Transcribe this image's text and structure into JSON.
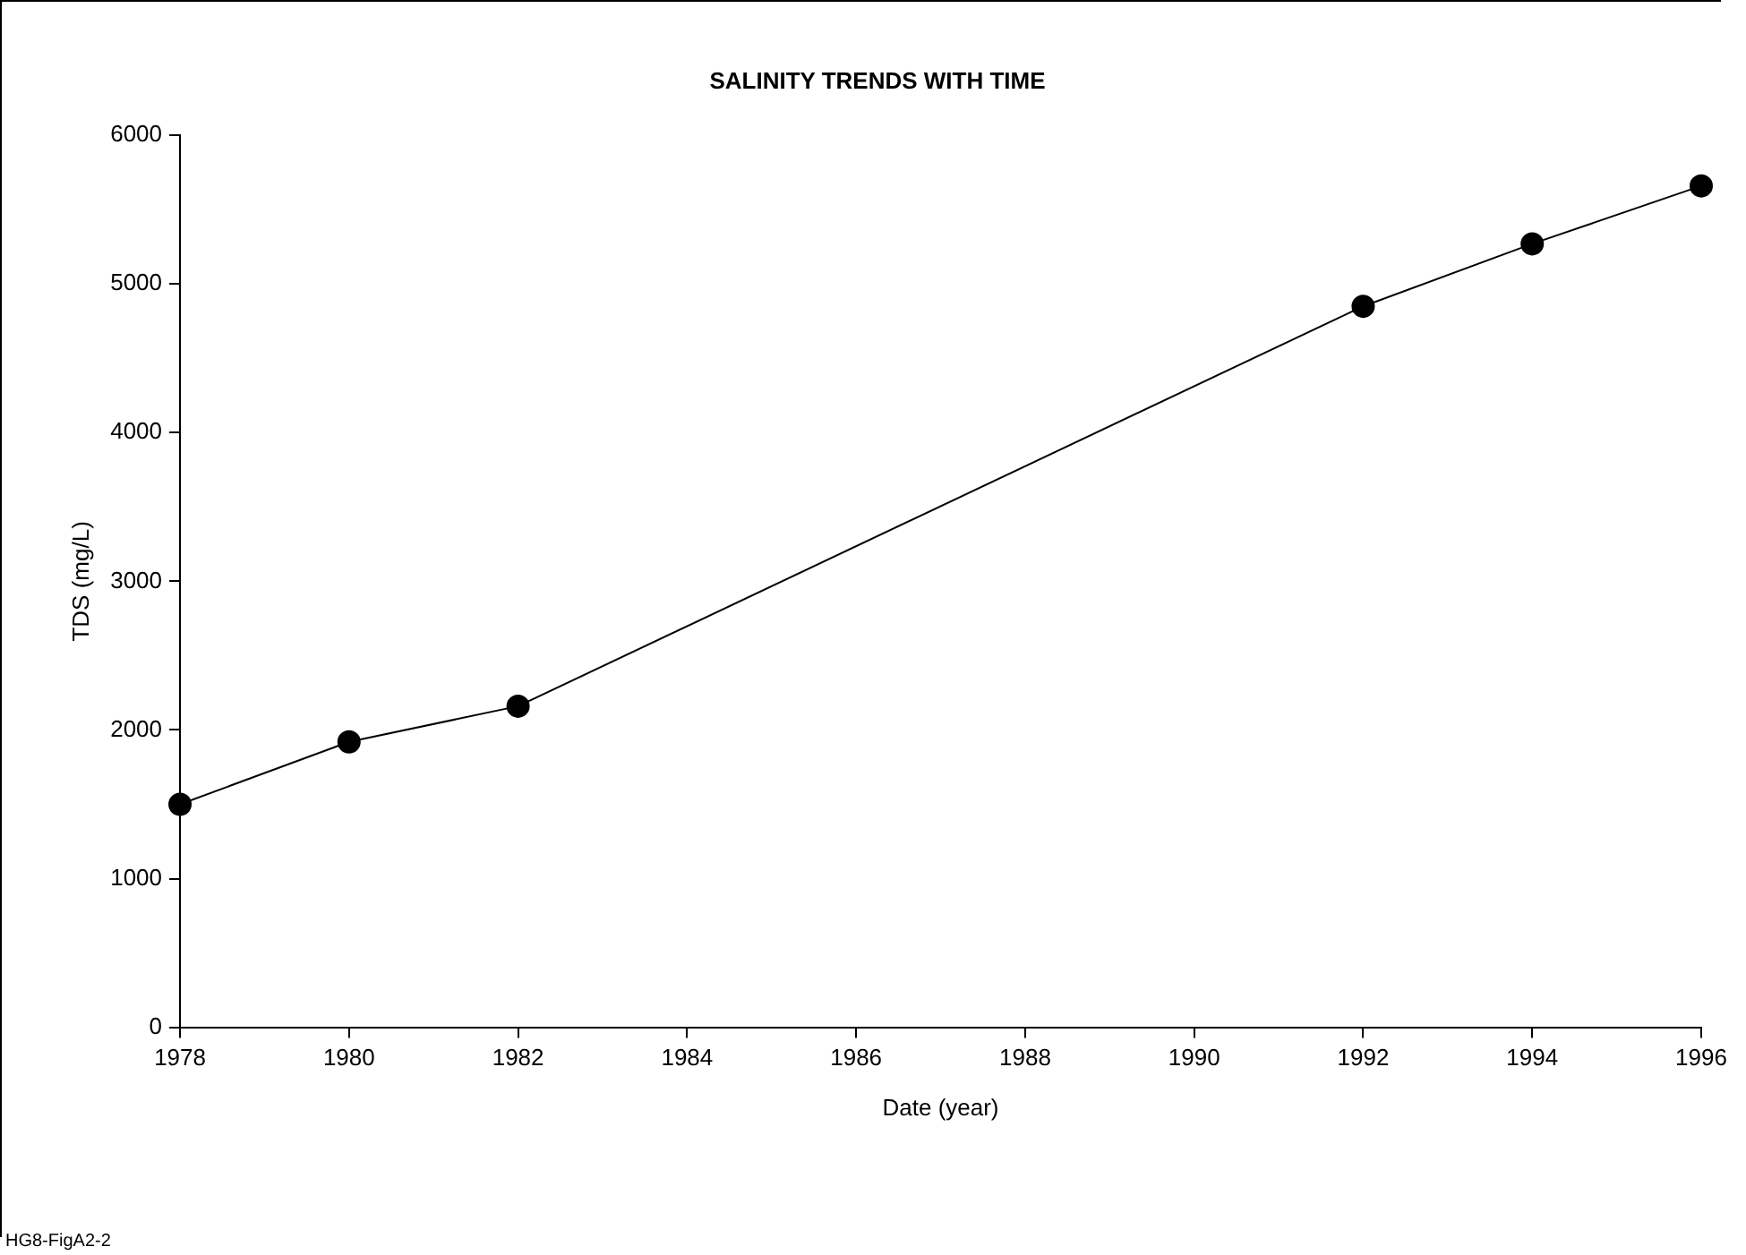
{
  "chart_data": {
    "type": "line",
    "title": "SALINITY TRENDS WITH TIME",
    "xlabel": "Date (year)",
    "ylabel": "TDS (mg/L)",
    "x": [
      1978,
      1980,
      1982,
      1992,
      1994,
      1996
    ],
    "series": [
      {
        "color": "#000000",
        "values": [
          1500,
          1920,
          2160,
          4850,
          5270,
          5660
        ]
      }
    ],
    "xlim": [
      1978,
      1996
    ],
    "xticks": [
      1978,
      1980,
      1982,
      1984,
      1986,
      1988,
      1990,
      1992,
      1994,
      1996
    ],
    "ylim": [
      0,
      6000
    ],
    "yticks": [
      0,
      1000,
      2000,
      3000,
      4000,
      5000,
      6000
    ],
    "marker": "circle",
    "line_style": "solid",
    "grid": false,
    "legend": false,
    "annotations": [
      "HG8-FigA2-2"
    ]
  }
}
